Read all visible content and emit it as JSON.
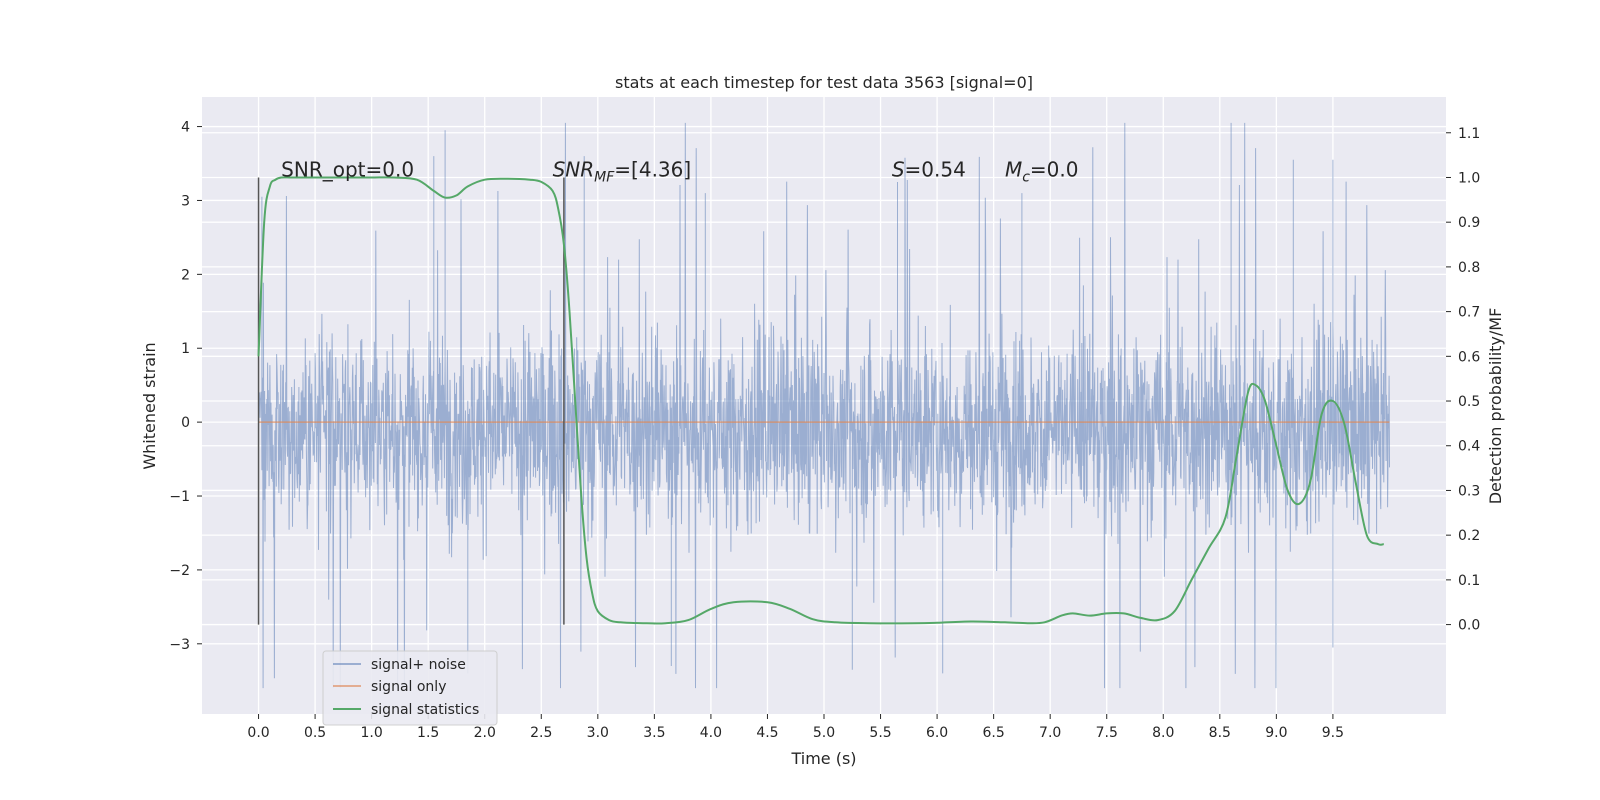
{
  "chart_data": {
    "type": "line",
    "title": "stats at each timestep for test data 3563 [signal=0]",
    "xlabel": "Time (s)",
    "ylabel_left": "Whitened strain",
    "ylabel_right": "Detection probability/MF",
    "xlim": [
      -0.5,
      10.5
    ],
    "ylim_left": [
      -3.95,
      4.4
    ],
    "ylim_right": [
      -0.2,
      1.18
    ],
    "x_ticks": [
      0.0,
      0.5,
      1.0,
      1.5,
      2.0,
      2.5,
      3.0,
      3.5,
      4.0,
      4.5,
      5.0,
      5.5,
      6.0,
      6.5,
      7.0,
      7.5,
      8.0,
      8.5,
      9.0,
      9.5
    ],
    "x_tick_labels": [
      "0.0",
      "0.5",
      "1.0",
      "1.5",
      "2.0",
      "2.5",
      "3.0",
      "3.5",
      "4.0",
      "4.5",
      "5.0",
      "5.5",
      "6.0",
      "6.5",
      "7.0",
      "7.5",
      "8.0",
      "8.5",
      "9.0",
      "9.5"
    ],
    "y_left_ticks": [
      -3,
      -2,
      -1,
      0,
      1,
      2,
      3,
      4
    ],
    "y_left_tick_labels": [
      "−3",
      "−2",
      "−1",
      "0",
      "1",
      "2",
      "3",
      "4"
    ],
    "y_right_ticks": [
      0.0,
      0.1,
      0.2,
      0.3,
      0.4,
      0.5,
      0.6,
      0.7,
      0.8,
      0.9,
      1.0,
      1.1
    ],
    "y_right_tick_labels": [
      "0.0",
      "0.1",
      "0.2",
      "0.3",
      "0.4",
      "0.5",
      "0.6",
      "0.7",
      "0.8",
      "0.9",
      "1.0",
      "1.1"
    ],
    "grid": true,
    "legend_position": "lower-left",
    "vertical_lines": [
      0.0,
      2.7
    ],
    "annotations": [
      {
        "x": 0.2,
        "y": 1.0,
        "axis": "right",
        "text": "SNR_opt=0.0"
      },
      {
        "x": 2.6,
        "y": 1.0,
        "axis": "right",
        "text": "SNR_MF=[4.36]"
      },
      {
        "x": 5.6,
        "y": 1.0,
        "axis": "right",
        "text": "S=0.54"
      },
      {
        "x": 6.6,
        "y": 1.0,
        "axis": "right",
        "text": "M_c=0.0"
      }
    ],
    "series": [
      {
        "name": "signal+ noise",
        "axis": "left",
        "color": "#4c72b0",
        "style": "noise",
        "x_range": [
          0.0,
          10.0
        ],
        "y_range_typical": [
          -2.1,
          1.9
        ],
        "y_min": -3.6,
        "y_max": 4.05,
        "peaks": [
          {
            "x": 0.03,
            "y": 3.05
          },
          {
            "x": 1.65,
            "y": 3.95
          },
          {
            "x": 1.55,
            "y": 3.6
          },
          {
            "x": 2.88,
            "y": 3.6
          },
          {
            "x": 3.95,
            "y": 3.1
          },
          {
            "x": 5.65,
            "y": 3.25
          },
          {
            "x": 6.75,
            "y": 3.1
          },
          {
            "x": 8.6,
            "y": 4.05
          },
          {
            "x": 9.15,
            "y": 3.55
          },
          {
            "x": 9.5,
            "y": 3.55
          },
          {
            "x": 0.04,
            "y": -3.25
          },
          {
            "x": 1.85,
            "y": -3.4
          },
          {
            "x": 3.65,
            "y": -3.3
          },
          {
            "x": 5.25,
            "y": -3.35
          },
          {
            "x": 6.05,
            "y": -3.4
          },
          {
            "x": 8.2,
            "y": -3.6
          },
          {
            "x": 9.5,
            "y": -3.05
          }
        ]
      },
      {
        "name": "signal only",
        "axis": "left",
        "color": "#dd8452",
        "x": [
          0.0,
          10.0
        ],
        "y": [
          0.0,
          0.0
        ]
      },
      {
        "name": "signal statistics",
        "axis": "right",
        "color": "#55a868",
        "x": [
          0.0,
          0.05,
          0.1,
          0.15,
          0.2,
          0.3,
          0.5,
          0.8,
          1.0,
          1.2,
          1.4,
          1.55,
          1.65,
          1.75,
          1.85,
          2.0,
          2.2,
          2.4,
          2.5,
          2.6,
          2.65,
          2.7,
          2.75,
          2.8,
          2.85,
          2.9,
          2.95,
          3.0,
          3.1,
          3.2,
          3.4,
          3.6,
          3.8,
          4.0,
          4.2,
          4.5,
          4.7,
          4.9,
          5.1,
          5.4,
          5.8,
          6.0,
          6.3,
          6.6,
          6.8,
          6.95,
          7.1,
          7.2,
          7.35,
          7.5,
          7.65,
          7.8,
          7.95,
          8.1,
          8.25,
          8.4,
          8.55,
          8.65,
          8.75,
          8.82,
          8.9,
          9.0,
          9.1,
          9.2,
          9.3,
          9.4,
          9.5,
          9.6,
          9.7,
          9.8,
          9.9,
          9.95
        ],
        "y": [
          0.6,
          0.9,
          0.98,
          0.995,
          1.0,
          1.0,
          1.0,
          1.0,
          1.0,
          1.0,
          0.995,
          0.97,
          0.955,
          0.96,
          0.98,
          0.995,
          0.997,
          0.995,
          0.99,
          0.97,
          0.93,
          0.85,
          0.7,
          0.5,
          0.3,
          0.15,
          0.07,
          0.03,
          0.01,
          0.005,
          0.003,
          0.003,
          0.01,
          0.035,
          0.05,
          0.05,
          0.035,
          0.012,
          0.005,
          0.003,
          0.003,
          0.004,
          0.007,
          0.005,
          0.003,
          0.005,
          0.02,
          0.025,
          0.02,
          0.025,
          0.025,
          0.015,
          0.01,
          0.03,
          0.1,
          0.17,
          0.24,
          0.38,
          0.52,
          0.535,
          0.5,
          0.4,
          0.3,
          0.27,
          0.32,
          0.47,
          0.5,
          0.45,
          0.32,
          0.2,
          0.18,
          0.18
        ]
      }
    ]
  }
}
